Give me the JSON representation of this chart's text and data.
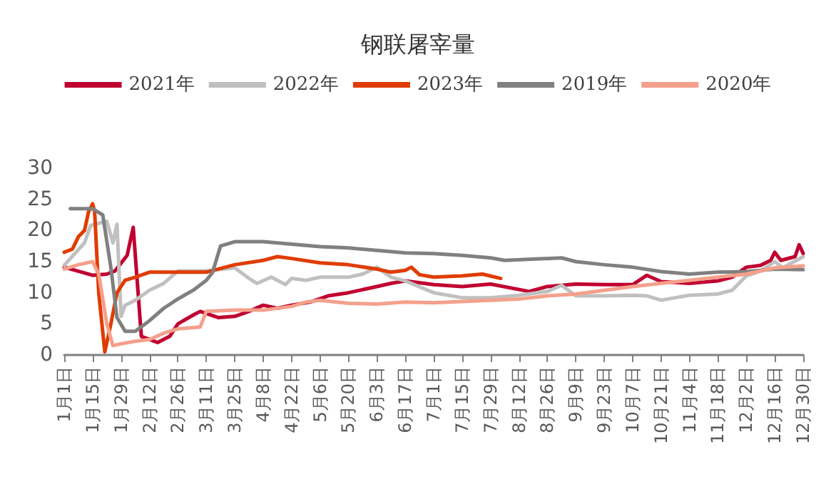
{
  "chart_data": {
    "type": "line",
    "title": "钢联屠宰量",
    "xlim": [
      "--01-01",
      "--12-30"
    ],
    "xticks": [
      {
        "value": "--01-01",
        "label": "1月1日"
      },
      {
        "value": "--01-15",
        "label": "1月15日"
      },
      {
        "value": "--01-29",
        "label": "1月29日"
      },
      {
        "value": "--02-12",
        "label": "2月12日"
      },
      {
        "value": "--02-26",
        "label": "2月26日"
      },
      {
        "value": "--03-11",
        "label": "3月11日"
      },
      {
        "value": "--03-25",
        "label": "3月25日"
      },
      {
        "value": "--04-08",
        "label": "4月8日"
      },
      {
        "value": "--04-22",
        "label": "4月22日"
      },
      {
        "value": "--05-06",
        "label": "5月6日"
      },
      {
        "value": "--05-20",
        "label": "5月20日"
      },
      {
        "value": "--06-03",
        "label": "6月3日"
      },
      {
        "value": "--06-17",
        "label": "6月17日"
      },
      {
        "value": "--07-01",
        "label": "7月1日"
      },
      {
        "value": "--07-15",
        "label": "7月15日"
      },
      {
        "value": "--07-29",
        "label": "7月29日"
      },
      {
        "value": "--08-12",
        "label": "8月12日"
      },
      {
        "value": "--08-26",
        "label": "8月26日"
      },
      {
        "value": "--09-09",
        "label": "9月9日"
      },
      {
        "value": "--09-23",
        "label": "9月23日"
      },
      {
        "value": "--10-07",
        "label": "10月7日"
      },
      {
        "value": "--10-21",
        "label": "10月21日"
      },
      {
        "value": "--11-04",
        "label": "11月4日"
      },
      {
        "value": "--11-18",
        "label": "11月18日"
      },
      {
        "value": "--12-02",
        "label": "12月2日"
      },
      {
        "value": "--12-16",
        "label": "12月16日"
      },
      {
        "value": "--12-30",
        "label": "12月30日"
      }
    ],
    "ylim": [
      0,
      30
    ],
    "yticks": [
      0,
      5,
      10,
      15,
      20,
      25,
      30
    ],
    "grid": false,
    "legend": "top",
    "marker": "none",
    "line_style": "solid",
    "series": [
      {
        "name": "2021年",
        "color": "#c00030",
        "x": [
          "--01-01",
          "--01-15",
          "--01-22",
          "--01-26",
          "--02-01",
          "--02-04",
          "--02-08",
          "--02-16",
          "--02-22",
          "--02-26",
          "--03-05",
          "--03-08",
          "--03-17",
          "--03-25",
          "--04-01",
          "--04-08",
          "--04-15",
          "--04-22",
          "--05-01",
          "--05-10",
          "--05-20",
          "--06-03",
          "--06-10",
          "--06-17",
          "--07-01",
          "--07-15",
          "--07-29",
          "--08-17",
          "--08-26",
          "--09-09",
          "--09-23",
          "--10-07",
          "--10-14",
          "--10-21",
          "--11-04",
          "--11-18",
          "--11-25",
          "--12-02",
          "--12-09",
          "--12-14",
          "--12-16",
          "--12-19",
          "--12-26",
          "--12-28",
          "--12-30"
        ],
        "values": [
          14.1,
          12.8,
          13,
          13.5,
          16,
          20.5,
          3,
          2,
          3,
          5,
          6.5,
          7,
          6,
          6.2,
          7,
          8,
          7.5,
          8,
          8.5,
          9.5,
          10,
          11,
          11.5,
          11.9,
          11.3,
          11,
          11.4,
          10.2,
          11,
          11.4,
          11.3,
          11.3,
          12.8,
          11.8,
          11.5,
          11.9,
          12.5,
          14.1,
          14.4,
          15.2,
          16.5,
          15.2,
          15.8,
          17.7,
          16.3
        ]
      },
      {
        "name": "2022年",
        "color": "#c0c0c0",
        "x": [
          "--01-01",
          "--01-11",
          "--01-14",
          "--01-22",
          "--01-25",
          "--01-27",
          "--01-29",
          "--01-31",
          "--02-05",
          "--02-12",
          "--02-19",
          "--02-26",
          "--03-11",
          "--03-25",
          "--04-01",
          "--04-05",
          "--04-12",
          "--04-19",
          "--04-22",
          "--04-29",
          "--05-06",
          "--05-20",
          "--05-27",
          "--06-03",
          "--06-10",
          "--06-17",
          "--07-01",
          "--07-15",
          "--07-29",
          "--08-12",
          "--08-26",
          "--09-02",
          "--09-09",
          "--09-23",
          "--10-07",
          "--10-14",
          "--10-21",
          "--11-04",
          "--11-18",
          "--11-25",
          "--12-02",
          "--12-09",
          "--12-16",
          "--12-20",
          "--12-30"
        ],
        "values": [
          14.4,
          18,
          20.8,
          21.5,
          18,
          21,
          6.2,
          8,
          8.8,
          10.4,
          11.5,
          13.5,
          13.5,
          14,
          12.3,
          11.5,
          12.5,
          11.3,
          12.3,
          12,
          12.5,
          12.5,
          13,
          14.1,
          12.5,
          11.9,
          10,
          9.2,
          9.2,
          9.6,
          10.2,
          11.2,
          9.5,
          9.5,
          9.6,
          9.5,
          8.8,
          9.6,
          9.8,
          10.4,
          12.7,
          13.5,
          15,
          14,
          15.8
        ]
      },
      {
        "name": "2023年",
        "color": "#e03c00",
        "x": [
          "--01-01",
          "--01-05",
          "--01-08",
          "--01-11",
          "--01-13",
          "--01-15",
          "--01-16",
          "--01-18",
          "--01-21",
          "--01-24",
          "--01-27",
          "--01-31",
          "--02-05",
          "--02-12",
          "--02-26",
          "--03-11",
          "--03-25",
          "--04-08",
          "--04-15",
          "--04-22",
          "--05-06",
          "--05-20",
          "--06-03",
          "--06-10",
          "--06-17",
          "--06-20",
          "--06-24",
          "--07-01",
          "--07-15",
          "--07-25",
          "--08-03"
        ],
        "values": [
          16.5,
          17,
          19,
          20,
          23,
          24.3,
          23,
          10,
          0.5,
          5,
          10,
          12,
          12.5,
          13.3,
          13.3,
          13.3,
          14.5,
          15.2,
          15.8,
          15.5,
          14.8,
          14.5,
          13.8,
          13.3,
          13.6,
          14.1,
          12.9,
          12.5,
          12.7,
          13,
          12.3
        ]
      },
      {
        "name": "2019年",
        "color": "#808080",
        "x": [
          "--01-04",
          "--01-15",
          "--01-20",
          "--01-24",
          "--01-27",
          "--01-31",
          "--02-05",
          "--02-12",
          "--02-19",
          "--02-26",
          "--03-05",
          "--03-11",
          "--03-14",
          "--03-18",
          "--03-25",
          "--04-08",
          "--04-22",
          "--05-06",
          "--05-20",
          "--06-03",
          "--06-17",
          "--07-01",
          "--07-15",
          "--07-29",
          "--08-05",
          "--08-26",
          "--09-02",
          "--09-09",
          "--09-23",
          "--10-07",
          "--10-21",
          "--11-04",
          "--11-18",
          "--12-02",
          "--12-16",
          "--12-30"
        ],
        "values": [
          23.5,
          23.5,
          22.5,
          14,
          6,
          3.8,
          3.8,
          5.5,
          7.5,
          9,
          10.5,
          12,
          13.2,
          17.5,
          18.2,
          18.2,
          17.8,
          17.4,
          17.2,
          16.8,
          16.4,
          16.3,
          16,
          15.6,
          15.2,
          15.5,
          15.6,
          15,
          14.5,
          14.1,
          13.4,
          13,
          13.3,
          13.4,
          13.8,
          13.7
        ]
      },
      {
        "name": "2020年",
        "color": "#f4a08c",
        "x": [
          "--01-01",
          "--01-08",
          "--01-15",
          "--01-18",
          "--01-22",
          "--01-25",
          "--01-29",
          "--02-05",
          "--02-12",
          "--02-19",
          "--02-26",
          "--03-08",
          "--03-11",
          "--03-25",
          "--04-08",
          "--04-22",
          "--04-29",
          "--05-06",
          "--05-20",
          "--06-03",
          "--06-17",
          "--07-01",
          "--07-15",
          "--07-29",
          "--08-12",
          "--08-26",
          "--09-09",
          "--09-23",
          "--10-07",
          "--10-21",
          "--11-04",
          "--11-18",
          "--12-02",
          "--12-16",
          "--12-30"
        ],
        "values": [
          13.8,
          14.5,
          15,
          13,
          5,
          1.5,
          1.8,
          2.2,
          2.5,
          3.5,
          4.2,
          4.5,
          7,
          7.2,
          7.2,
          7.8,
          8.5,
          8.8,
          8.3,
          8.2,
          8.5,
          8.4,
          8.6,
          8.8,
          9,
          9.5,
          9.8,
          10.4,
          11,
          11.5,
          12,
          12.5,
          13,
          14,
          14.3
        ]
      }
    ]
  }
}
